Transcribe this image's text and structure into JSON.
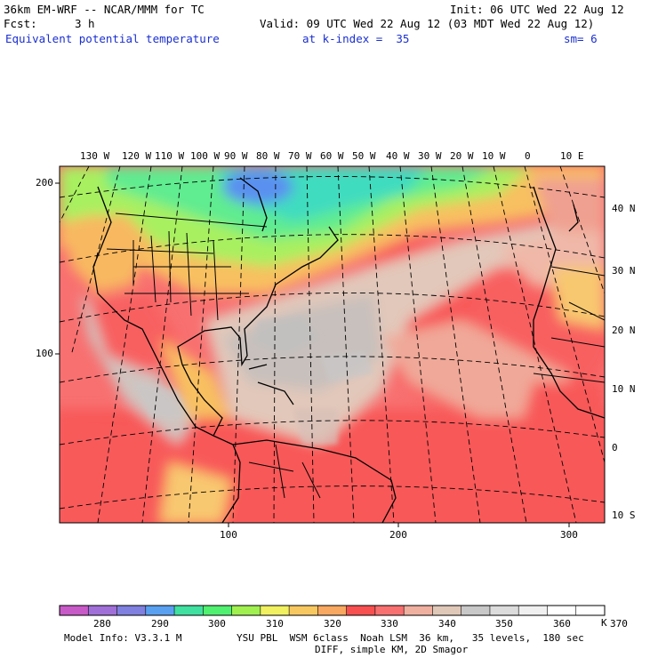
{
  "header": {
    "model": "36km EM-WRF -- NCAR/MMM for TC",
    "init": "Init: 06 UTC Wed 22 Aug 12",
    "fcst_label": "Fcst:",
    "fcst_value": "3 h",
    "valid": "Valid: 09 UTC Wed 22 Aug 12 (03 MDT Wed 22 Aug 12)",
    "field": "Equivalent potential temperature",
    "level": "at k-index =  35",
    "smooth": "sm= 6"
  },
  "map": {
    "lon_labels": [
      "130 W",
      "120 W",
      "110 W",
      "100 W",
      "90 W",
      "80 W",
      "70 W",
      "60 W",
      "50 W",
      "40 W",
      "30 W",
      "20 W",
      "10 W",
      "0",
      "10 E"
    ],
    "lat_labels": [
      "40 N",
      "30 N",
      "20 N",
      "10 N",
      "0",
      "10 S"
    ],
    "grid_y_labels": [
      "200",
      "100"
    ],
    "grid_x_labels": [
      "100",
      "200",
      "300"
    ]
  },
  "colorbar": {
    "tick_labels": [
      "280",
      "290",
      "300",
      "310",
      "320",
      "330",
      "340",
      "350",
      "360",
      "370"
    ],
    "unit": "K",
    "colors": [
      "#c85ac8",
      "#a070d8",
      "#8080e0",
      "#5aa0f0",
      "#40e0a0",
      "#50f070",
      "#a0f050",
      "#f0f060",
      "#f8c860",
      "#f8a860",
      "#f85050",
      "#f87070",
      "#f0b0a0",
      "#e0c8b8",
      "#c8c8c8",
      "#dcdcdc",
      "#f0f0f0",
      "#ffffff",
      "#ffffff"
    ]
  },
  "footer": {
    "model_info": "Model Info: V3.3.1 M",
    "physics": "YSU PBL  WSM 6class  Noah LSM  36 km,   35 levels,  180 sec",
    "diff": "DIFF, simple KM, 2D Smagor"
  }
}
